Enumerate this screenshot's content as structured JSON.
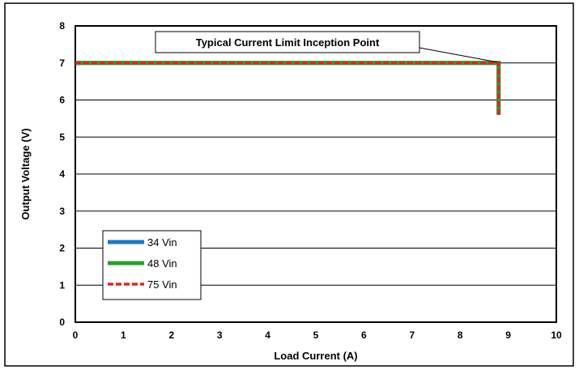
{
  "chart_data": {
    "type": "line",
    "title": "",
    "xlabel": "Load Current (A)",
    "ylabel": "Output Voltage (V)",
    "xlim": [
      0,
      10
    ],
    "ylim": [
      0,
      8
    ],
    "x_ticks": [
      "0",
      "1",
      "2",
      "3",
      "4",
      "5",
      "6",
      "7",
      "8",
      "9",
      "10"
    ],
    "y_ticks": [
      "0",
      "1",
      "2",
      "3",
      "4",
      "5",
      "6",
      "7",
      "8"
    ],
    "grid": "horizontal",
    "legend_position": "bottom-left",
    "annotation": {
      "text": "Typical Current Limit Inception Point",
      "x": 8.8,
      "y": 7.0
    },
    "series": [
      {
        "name": "34 Vin",
        "color": "#1f77c4",
        "style": "solid",
        "x": [
          0,
          8.8,
          8.8
        ],
        "y": [
          7.0,
          7.0,
          5.6
        ]
      },
      {
        "name": "48 Vin",
        "color": "#2ca02c",
        "style": "solid",
        "x": [
          0,
          8.8,
          8.8
        ],
        "y": [
          7.0,
          7.0,
          5.6
        ]
      },
      {
        "name": "75 Vin",
        "color": "#e0261e",
        "style": "dashed",
        "x": [
          0,
          8.8,
          8.8
        ],
        "y": [
          7.0,
          7.0,
          5.6
        ]
      }
    ]
  }
}
